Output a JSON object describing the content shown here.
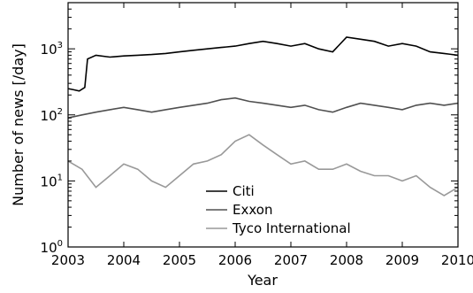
{
  "chart_data": {
    "type": "line",
    "title": "",
    "xlabel": "Year",
    "ylabel": "Number of news [/day]",
    "xlim": [
      2003,
      2010
    ],
    "ylim": [
      1,
      5000
    ],
    "yscale": "log",
    "grid": false,
    "legend_position": "bottom-center",
    "x_ticks": [
      "2003",
      "2004",
      "2005",
      "2006",
      "2007",
      "2008",
      "2009",
      "2010"
    ],
    "y_ticks": [
      {
        "value": 1,
        "base": "10",
        "exp": "0"
      },
      {
        "value": 10,
        "base": "10",
        "exp": "1"
      },
      {
        "value": 100,
        "base": "10",
        "exp": "2"
      },
      {
        "value": 1000,
        "base": "10",
        "exp": "3"
      }
    ],
    "series": [
      {
        "name": "Citi",
        "color": "#000000",
        "x": [
          2003.0,
          2003.1,
          2003.2,
          2003.3,
          2003.35,
          2003.5,
          2003.75,
          2004.0,
          2004.25,
          2004.5,
          2004.75,
          2005.0,
          2005.25,
          2005.5,
          2005.75,
          2006.0,
          2006.25,
          2006.5,
          2006.75,
          2007.0,
          2007.25,
          2007.5,
          2007.75,
          2008.0,
          2008.25,
          2008.5,
          2008.75,
          2009.0,
          2009.25,
          2009.5,
          2009.75,
          2010.0
        ],
        "y": [
          250,
          240,
          230,
          260,
          700,
          800,
          750,
          780,
          800,
          820,
          850,
          900,
          950,
          1000,
          1050,
          1100,
          1200,
          1300,
          1200,
          1100,
          1200,
          1000,
          900,
          1500,
          1400,
          1300,
          1100,
          1200,
          1100,
          900,
          850,
          800
        ]
      },
      {
        "name": "Exxon",
        "color": "#505050",
        "x": [
          2003.0,
          2003.25,
          2003.5,
          2003.75,
          2004.0,
          2004.25,
          2004.5,
          2004.75,
          2005.0,
          2005.25,
          2005.5,
          2005.75,
          2006.0,
          2006.25,
          2006.5,
          2006.75,
          2007.0,
          2007.25,
          2007.5,
          2007.75,
          2008.0,
          2008.25,
          2008.5,
          2008.75,
          2009.0,
          2009.25,
          2009.5,
          2009.75,
          2010.0
        ],
        "y": [
          90,
          100,
          110,
          120,
          130,
          120,
          110,
          120,
          130,
          140,
          150,
          170,
          180,
          160,
          150,
          140,
          130,
          140,
          120,
          110,
          130,
          150,
          140,
          130,
          120,
          140,
          150,
          140,
          150
        ]
      },
      {
        "name": "Tyco International",
        "color": "#999999",
        "x": [
          2003.0,
          2003.25,
          2003.5,
          2003.75,
          2004.0,
          2004.25,
          2004.5,
          2004.75,
          2005.0,
          2005.25,
          2005.5,
          2005.75,
          2006.0,
          2006.25,
          2006.5,
          2006.75,
          2007.0,
          2007.25,
          2007.5,
          2007.75,
          2008.0,
          2008.25,
          2008.5,
          2008.75,
          2009.0,
          2009.25,
          2009.5,
          2009.75,
          2010.0
        ],
        "y": [
          20,
          15,
          8,
          12,
          18,
          15,
          10,
          8,
          12,
          18,
          20,
          25,
          40,
          50,
          35,
          25,
          18,
          20,
          15,
          15,
          18,
          14,
          12,
          12,
          10,
          12,
          8,
          6,
          8
        ]
      }
    ]
  }
}
